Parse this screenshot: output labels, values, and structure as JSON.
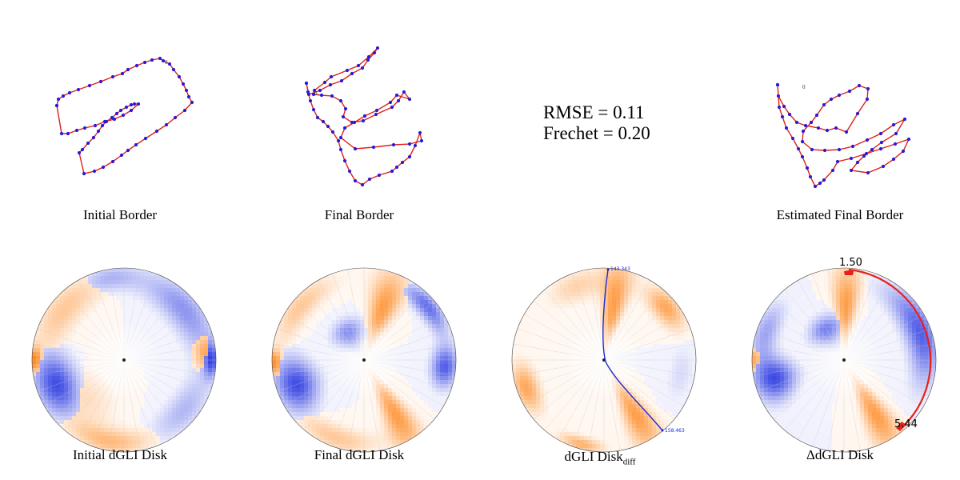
{
  "top_row": {
    "initial_border_label": "Initial Border",
    "final_border_label": "Final Border",
    "estimated_border_label": "Estimated Final Border",
    "rmse_text": "RMSE = 0.11",
    "frechet_text": "Frechet = 0.20"
  },
  "bottom_row": {
    "initial_disk_label": "Initial dGLI Disk",
    "final_disk_label": "Final dGLI Disk",
    "diff_disk_label": "dGLI Disk",
    "diff_disk_subscript": "diff",
    "delta_disk_label": "ΔdGLI Disk",
    "diff_disk_angle_top": "143.343",
    "diff_disk_angle_bottom": "158.463",
    "delta_disk_value_top": "1.50",
    "delta_disk_value_bottom": "5.44"
  },
  "colors": {
    "positive": "#ff7f0e",
    "negative": "#1f2fe0",
    "border_line": "#e0201a",
    "border_points": "#2a1bd6",
    "diff_curve": "#1a2bd0",
    "delta_arc": "#e8201a"
  },
  "chart_data": [
    {
      "type": "scatter",
      "title": "Initial Border",
      "series": [
        {
          "x": [
            71,
            73,
            79,
            87,
            98,
            112,
            126,
            141,
            153,
            160,
            171,
            181,
            190,
            200,
            204,
            212,
            217,
            224,
            229,
            233,
            236,
            240,
            231,
            219,
            208,
            196,
            182,
            170,
            160,
            152,
            141,
            129,
            118,
            105,
            99,
            103,
            110,
            117,
            123,
            128,
            133,
            140,
            146,
            151,
            158,
            164,
            168,
            173,
            164,
            154,
            143,
            131,
            119,
            106,
            96,
            85,
            77,
            71
          ],
          "y": [
            132,
            124,
            120,
            116,
            112,
            107,
            102,
            96,
            92,
            87,
            82,
            78,
            75,
            73,
            76,
            80,
            87,
            96,
            105,
            113,
            121,
            128,
            138,
            147,
            156,
            164,
            173,
            181,
            188,
            194,
            202,
            209,
            214,
            217,
            191,
            187,
            179,
            172,
            164,
            157,
            152,
            147,
            142,
            138,
            134,
            131,
            130,
            130,
            138,
            144,
            149,
            152,
            157,
            160,
            163,
            167,
            167,
            132
          ]
        }
      ]
    },
    {
      "type": "scatter",
      "title": "Final Border",
      "series": [
        {
          "x": [
            383,
            386,
            400,
            413,
            427,
            440,
            453,
            460,
            468,
            472,
            461,
            448,
            434,
            414,
            406,
            393,
            392,
            402,
            415,
            426,
            432,
            429,
            440,
            454,
            470,
            490,
            498,
            505,
            512,
            496,
            488,
            471,
            456,
            443,
            431,
            426,
            444,
            467,
            492,
            512,
            527,
            525,
            519,
            512,
            503,
            496,
            490,
            474,
            462,
            453,
            444,
            437,
            431,
            426,
            423,
            416,
            410,
            404,
            397,
            392,
            388,
            385,
            383
          ],
          "y": [
            104,
            118,
            113,
            106,
            101,
            92,
            85,
            75,
            66,
            60,
            71,
            82,
            88,
            96,
            103,
            113,
            118,
            119,
            120,
            126,
            136,
            146,
            153,
            151,
            143,
            134,
            126,
            115,
            124,
            119,
            128,
            138,
            145,
            153,
            160,
            172,
            186,
            184,
            181,
            180,
            176,
            166,
            182,
            196,
            203,
            209,
            214,
            219,
            224,
            231,
            226,
            214,
            201,
            187,
            176,
            165,
            158,
            152,
            147,
            137,
            126,
            115,
            104
          ]
        }
      ]
    },
    {
      "type": "scatter",
      "title": "Estimated Final Border",
      "series": [
        {
          "x": [
            972,
            973,
            980,
            987,
            996,
            1007,
            1023,
            1034,
            1045,
            1058,
            1072,
            1084,
            1085,
            1074,
            1062,
            1049,
            1039,
            1030,
            1021,
            1014,
            1004,
            1003,
            1015,
            1031,
            1049,
            1066,
            1084,
            1101,
            1117,
            1131,
            1120,
            1102,
            1090,
            1080,
            1072,
            1064,
            1085,
            1104,
            1117,
            1129,
            1136,
            1119,
            1101,
            1083,
            1064,
            1047,
            1041,
            1030,
            1025,
            1019,
            1013,
            1009,
            1003,
            998,
            991,
            983,
            978,
            974,
            972
          ],
          "y": [
            106,
            120,
            133,
            143,
            153,
            157,
            160,
            163,
            160,
            165,
            142,
            124,
            111,
            107,
            114,
            119,
            124,
            131,
            144,
            153,
            164,
            177,
            187,
            188,
            187,
            183,
            175,
            167,
            156,
            149,
            167,
            178,
            187,
            195,
            203,
            213,
            216,
            208,
            199,
            189,
            174,
            180,
            186,
            192,
            198,
            202,
            213,
            225,
            229,
            233,
            221,
            210,
            196,
            186,
            173,
            160,
            146,
            134,
            106
          ]
        }
      ]
    }
  ]
}
